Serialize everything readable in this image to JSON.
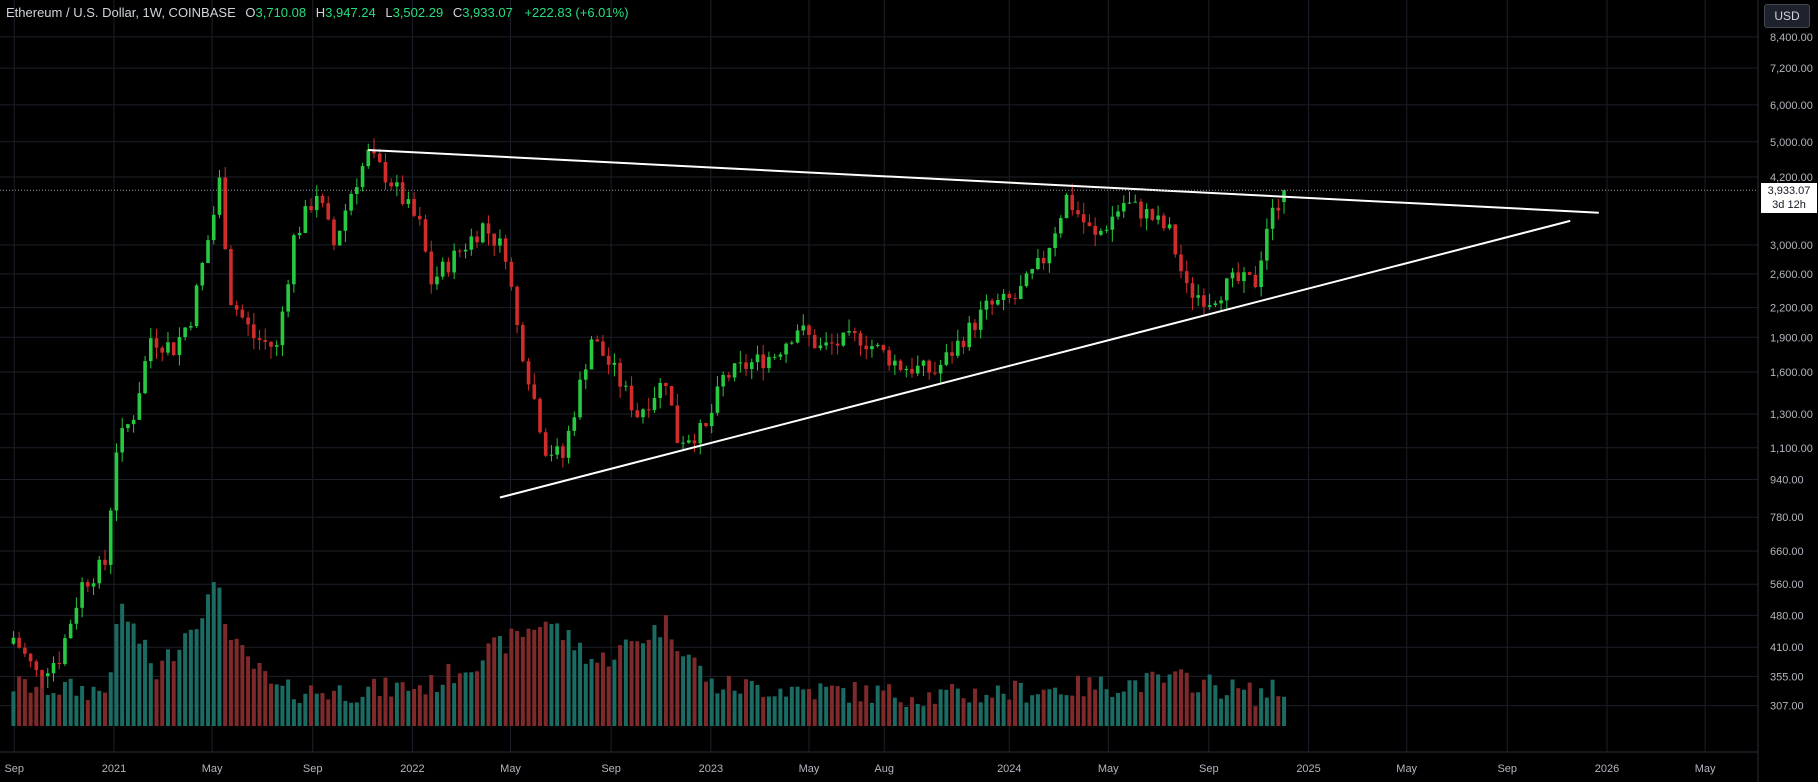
{
  "header": {
    "symbol": "Ethereum / U.S. Dollar, 1W, COINBASE",
    "o_label": "O",
    "o_value": "3,710.08",
    "h_label": "H",
    "h_value": "3,947.24",
    "l_label": "L",
    "l_value": "3,502.29",
    "c_label": "C",
    "c_value": "3,933.07",
    "change": "+222.83 (+6.01%)"
  },
  "currency_button": "USD",
  "price_tag": {
    "price": "3,933.07",
    "countdown": "3d 12h"
  },
  "colors": {
    "up": "#26c940",
    "down": "#d12c2c",
    "up_vol": "#1b6b63",
    "down_vol": "#7f2a2a",
    "trendline": "#ffffff"
  },
  "chart_data": {
    "type": "candlestick",
    "interval": "1W",
    "price_scale": "log",
    "y_ticks": [
      "8,400.00",
      "7,200.00",
      "6,000.00",
      "5,000.00",
      "4,200.00",
      "3,000.00",
      "2,600.00",
      "2,200.00",
      "1,900.00",
      "1,600.00",
      "1,300.00",
      "1,100.00",
      "940.00",
      "780.00",
      "660.00",
      "560.00",
      "480.00",
      "410.00",
      "355.00",
      "307.00"
    ],
    "x_ticks": [
      "Sep",
      "2021",
      "May",
      "Sep",
      "2022",
      "May",
      "Sep",
      "2023",
      "May",
      "Aug",
      "2024",
      "May",
      "Sep",
      "2025",
      "May",
      "Sep",
      "2026",
      "May"
    ],
    "last_close": 3933.07,
    "grid": true,
    "price_path": [
      [
        "2020-08-31",
        430
      ],
      [
        "2020-09-28",
        360
      ],
      [
        "2020-10-26",
        390
      ],
      [
        "2020-11-23",
        560
      ],
      [
        "2020-12-21",
        620
      ],
      [
        "2021-01-04",
        1100
      ],
      [
        "2021-01-25",
        1300
      ],
      [
        "2021-02-15",
        1900
      ],
      [
        "2021-03-15",
        1800
      ],
      [
        "2021-04-05",
        2100
      ],
      [
        "2021-05-03",
        3500
      ],
      [
        "2021-05-10",
        4100
      ],
      [
        "2021-05-24",
        2300
      ],
      [
        "2021-06-21",
        1900
      ],
      [
        "2021-07-19",
        1800
      ],
      [
        "2021-08-09",
        3100
      ],
      [
        "2021-09-06",
        3900
      ],
      [
        "2021-09-27",
        3000
      ],
      [
        "2021-10-18",
        3900
      ],
      [
        "2021-11-08",
        4700
      ],
      [
        "2021-12-06",
        4100
      ],
      [
        "2022-01-10",
        3300
      ],
      [
        "2022-01-24",
        2500
      ],
      [
        "2022-03-28",
        3300
      ],
      [
        "2022-04-25",
        2900
      ],
      [
        "2022-05-09",
        2000
      ],
      [
        "2022-06-13",
        1100
      ],
      [
        "2022-07-04",
        1050
      ],
      [
        "2022-08-08",
        1900
      ],
      [
        "2022-09-05",
        1600
      ],
      [
        "2022-10-03",
        1300
      ],
      [
        "2022-11-07",
        1550
      ],
      [
        "2022-11-21",
        1150
      ],
      [
        "2022-12-26",
        1200
      ],
      [
        "2023-01-16",
        1550
      ],
      [
        "2023-02-13",
        1650
      ],
      [
        "2023-03-20",
        1750
      ],
      [
        "2023-04-17",
        2000
      ],
      [
        "2023-05-15",
        1800
      ],
      [
        "2023-07-03",
        1900
      ],
      [
        "2023-08-21",
        1650
      ],
      [
        "2023-10-02",
        1600
      ],
      [
        "2023-11-06",
        1900
      ],
      [
        "2023-12-04",
        2200
      ],
      [
        "2024-01-08",
        2300
      ],
      [
        "2024-02-12",
        2800
      ],
      [
        "2024-03-11",
        3800
      ],
      [
        "2024-04-15",
        3100
      ],
      [
        "2024-05-20",
        3700
      ],
      [
        "2024-06-17",
        3500
      ],
      [
        "2024-07-15",
        3200
      ],
      [
        "2024-08-05",
        2400
      ],
      [
        "2024-09-02",
        2300
      ],
      [
        "2024-09-30",
        2500
      ],
      [
        "2024-10-28",
        2500
      ],
      [
        "2024-11-11",
        3300
      ],
      [
        "2024-12-02",
        3933
      ]
    ],
    "volume_path": [
      [
        "2020-08-31",
        340
      ],
      [
        "2020-12-21",
        330
      ],
      [
        "2021-01-11",
        500
      ],
      [
        "2021-02-22",
        360
      ],
      [
        "2021-05-10",
        560
      ],
      [
        "2021-05-24",
        420
      ],
      [
        "2021-07-19",
        330
      ],
      [
        "2021-10-18",
        330
      ],
      [
        "2022-01-24",
        340
      ],
      [
        "2022-06-13",
        470
      ],
      [
        "2022-08-15",
        380
      ],
      [
        "2022-11-07",
        460
      ],
      [
        "2023-01-02",
        340
      ],
      [
        "2023-06-05",
        330
      ],
      [
        "2023-10-02",
        322
      ],
      [
        "2024-03-11",
        335
      ],
      [
        "2024-08-05",
        350
      ],
      [
        "2024-10-28",
        325
      ],
      [
        "2024-12-02",
        335
      ]
    ],
    "trendlines": [
      {
        "from": [
          "2021-11-08",
          4800
        ],
        "to": [
          "2025-12-22",
          3520
        ]
      },
      {
        "from": [
          "2022-04-18",
          860
        ],
        "to": [
          "2025-11-17",
          3380
        ]
      }
    ]
  }
}
